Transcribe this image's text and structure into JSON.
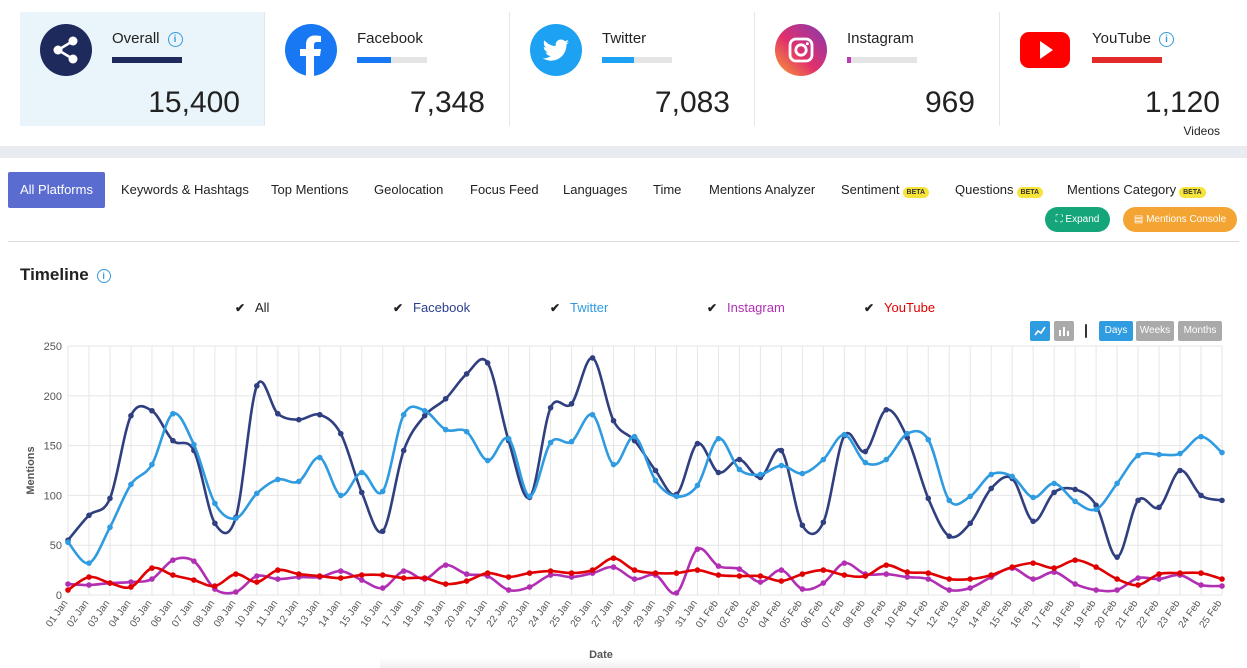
{
  "cards": [
    {
      "name": "Overall",
      "value": "15,400",
      "sub": "",
      "info": true,
      "fill": 1.0,
      "color": "#1f2a5c"
    },
    {
      "name": "Facebook",
      "value": "7,348",
      "sub": "",
      "info": false,
      "fill": 0.48,
      "color": "#1877f2"
    },
    {
      "name": "Twitter",
      "value": "7,083",
      "sub": "",
      "info": false,
      "fill": 0.46,
      "color": "#1da1f2"
    },
    {
      "name": "Instagram",
      "value": "969",
      "sub": "",
      "info": false,
      "fill": 0.06,
      "color": "#b93db3"
    },
    {
      "name": "YouTube",
      "value": "1,120",
      "sub": "Videos",
      "info": true,
      "fill": 1.0,
      "color": "#e22b2b"
    }
  ],
  "tabs": [
    "All Platforms",
    "Keywords & Hashtags",
    "Top Mentions",
    "Geolocation",
    "Focus Feed",
    "Languages",
    "Time",
    "Mentions Analyzer",
    "Sentiment",
    "Questions",
    "Mentions Category"
  ],
  "beta_label": "BETA",
  "buttons": {
    "expand": "Expand",
    "console": "Mentions Console"
  },
  "timeline_title": "Timeline",
  "legend": [
    {
      "label": "All",
      "color": "#222222"
    },
    {
      "label": "Facebook",
      "color": "#2b3f8c"
    },
    {
      "label": "Twitter",
      "color": "#2f9be0"
    },
    {
      "label": "Instagram",
      "color": "#b12fb3"
    },
    {
      "label": "YouTube",
      "color": "#e00000"
    }
  ],
  "range_buttons": [
    "Days",
    "Weeks",
    "Months"
  ],
  "chart_data": {
    "type": "line",
    "xlabel": "Date",
    "ylabel": "Mentions",
    "ylim": [
      0,
      250
    ],
    "yticks": [
      0,
      50,
      100,
      150,
      200,
      250
    ],
    "categories": [
      "01 Jan",
      "02 Jan",
      "03 Jan",
      "04 Jan",
      "05 Jan",
      "06 Jan",
      "07 Jan",
      "08 Jan",
      "09 Jan",
      "10 Jan",
      "11 Jan",
      "12 Jan",
      "13 Jan",
      "14 Jan",
      "15 Jan",
      "16 Jan",
      "17 Jan",
      "18 Jan",
      "19 Jan",
      "20 Jan",
      "21 Jan",
      "22 Jan",
      "23 Jan",
      "24 Jan",
      "25 Jan",
      "26 Jan",
      "27 Jan",
      "28 Jan",
      "29 Jan",
      "30 Jan",
      "31 Jan",
      "01 Feb",
      "02 Feb",
      "03 Feb",
      "04 Feb",
      "05 Feb",
      "06 Feb",
      "07 Feb",
      "08 Feb",
      "09 Feb",
      "10 Feb",
      "11 Feb",
      "12 Feb",
      "13 Feb",
      "14 Feb",
      "15 Feb",
      "16 Feb",
      "17 Feb",
      "18 Feb",
      "19 Feb",
      "20 Feb",
      "21 Feb",
      "22 Feb",
      "23 Feb",
      "24 Feb",
      "25 Feb"
    ],
    "series": [
      {
        "name": "Facebook",
        "color": "#2f3f7f",
        "values": [
          55,
          80,
          97,
          180,
          185,
          155,
          145,
          72,
          78,
          210,
          182,
          176,
          181,
          162,
          103,
          64,
          145,
          180,
          197,
          222,
          233,
          155,
          98,
          188,
          192,
          238,
          175,
          155,
          125,
          101,
          152,
          123,
          136,
          118,
          145,
          70,
          73,
          160,
          144,
          186,
          158,
          97,
          59,
          72,
          107,
          117,
          74,
          103,
          106,
          90,
          38,
          95,
          88,
          125,
          100,
          95
        ]
      },
      {
        "name": "Twitter",
        "color": "#2f9be0",
        "values": [
          53,
          32,
          68,
          111,
          131,
          182,
          151,
          92,
          77,
          102,
          116,
          114,
          138,
          100,
          123,
          104,
          181,
          185,
          166,
          164,
          135,
          157,
          99,
          153,
          154,
          181,
          131,
          159,
          115,
          99,
          110,
          157,
          126,
          121,
          130,
          122,
          136,
          161,
          133,
          136,
          162,
          156,
          95,
          99,
          121,
          119,
          98,
          112,
          94,
          86,
          112,
          140,
          141,
          142,
          159,
          143
        ]
      },
      {
        "name": "Instagram",
        "color": "#b12fb3",
        "values": [
          11,
          10,
          12,
          13,
          16,
          35,
          34,
          6,
          3,
          19,
          16,
          18,
          18,
          24,
          15,
          7,
          24,
          16,
          30,
          21,
          19,
          5,
          8,
          20,
          18,
          22,
          28,
          16,
          20,
          2,
          46,
          29,
          26,
          13,
          25,
          6,
          12,
          32,
          21,
          21,
          18,
          16,
          5,
          7,
          18,
          27,
          16,
          23,
          11,
          5,
          5,
          17,
          16,
          20,
          10,
          9
        ]
      },
      {
        "name": "YouTube",
        "color": "#e00000",
        "values": [
          5,
          18,
          12,
          8,
          27,
          20,
          15,
          9,
          21,
          13,
          25,
          21,
          19,
          17,
          20,
          20,
          17,
          17,
          11,
          14,
          22,
          18,
          22,
          24,
          22,
          25,
          37,
          25,
          22,
          22,
          25,
          20,
          19,
          19,
          14,
          21,
          25,
          20,
          19,
          30,
          23,
          22,
          16,
          16,
          20,
          28,
          32,
          27,
          35,
          28,
          16,
          10,
          21,
          22,
          22,
          16
        ]
      }
    ]
  }
}
